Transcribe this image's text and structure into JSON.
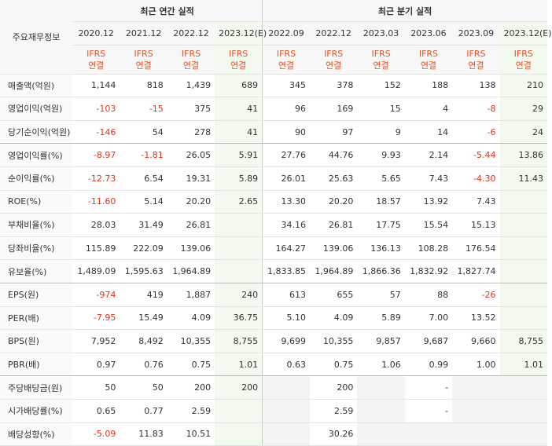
{
  "table": {
    "corner": "주요재무정보",
    "groups": [
      {
        "label": "최근 연간 실적",
        "span": 4
      },
      {
        "label": "최근 분기 실적",
        "span": 6
      }
    ],
    "columns": [
      {
        "date": "2020.12",
        "basis": [
          "IFRS",
          "연결"
        ]
      },
      {
        "date": "2021.12",
        "basis": [
          "IFRS",
          "연결"
        ]
      },
      {
        "date": "2022.12",
        "basis": [
          "IFRS",
          "연결"
        ]
      },
      {
        "date": "2023.12(E)",
        "basis": [
          "IFRS",
          "연결"
        ],
        "estimate": true
      },
      {
        "date": "2022.09",
        "basis": [
          "IFRS",
          "연결"
        ]
      },
      {
        "date": "2022.12",
        "basis": [
          "IFRS",
          "연결"
        ]
      },
      {
        "date": "2023.03",
        "basis": [
          "IFRS",
          "연결"
        ]
      },
      {
        "date": "2023.06",
        "basis": [
          "IFRS",
          "연결"
        ]
      },
      {
        "date": "2023.09",
        "basis": [
          "IFRS",
          "연결"
        ]
      },
      {
        "date": "2023.12(E)",
        "basis": [
          "IFRS",
          "연결"
        ],
        "estimate": true
      }
    ],
    "rows": [
      {
        "label": "매출액(억원)",
        "values": [
          "1,144",
          "818",
          "1,439",
          "689",
          "345",
          "378",
          "152",
          "188",
          "138",
          "210"
        ]
      },
      {
        "label": "영업이익(억원)",
        "values": [
          "-103",
          "-15",
          "375",
          "41",
          "96",
          "169",
          "15",
          "4",
          "-8",
          "29"
        ]
      },
      {
        "label": "당기순이익(억원)",
        "values": [
          "-146",
          "54",
          "278",
          "41",
          "90",
          "97",
          "9",
          "14",
          "-6",
          "24"
        ]
      },
      {
        "label": "영업이익률(%)",
        "values": [
          "-8.97",
          "-1.81",
          "26.05",
          "5.91",
          "27.76",
          "44.76",
          "9.93",
          "2.14",
          "-5.44",
          "13.86"
        ]
      },
      {
        "label": "순이익률(%)",
        "values": [
          "-12.73",
          "6.54",
          "19.31",
          "5.89",
          "26.01",
          "25.63",
          "5.65",
          "7.43",
          "-4.30",
          "11.43"
        ]
      },
      {
        "label": "ROE(%)",
        "values": [
          "-11.60",
          "5.14",
          "20.20",
          "2.65",
          "13.30",
          "20.20",
          "18.57",
          "13.92",
          "7.43",
          null
        ]
      },
      {
        "label": "부채비율(%)",
        "values": [
          "28.03",
          "31.49",
          "26.81",
          null,
          "34.16",
          "26.81",
          "17.75",
          "15.54",
          "15.13",
          null
        ]
      },
      {
        "label": "당좌비율(%)",
        "values": [
          "115.89",
          "222.09",
          "139.06",
          null,
          "164.27",
          "139.06",
          "136.13",
          "108.28",
          "176.54",
          null
        ]
      },
      {
        "label": "유보율(%)",
        "values": [
          "1,489.09",
          "1,595.63",
          "1,964.89",
          null,
          "1,833.85",
          "1,964.89",
          "1,866.36",
          "1,832.92",
          "1,827.74",
          null
        ]
      },
      {
        "label": "EPS(원)",
        "values": [
          "-974",
          "419",
          "1,887",
          "240",
          "613",
          "655",
          "57",
          "88",
          "-26",
          null
        ]
      },
      {
        "label": "PER(배)",
        "values": [
          "-7.95",
          "15.49",
          "4.09",
          "36.75",
          "5.10",
          "4.09",
          "5.89",
          "7.00",
          "13.52",
          null
        ]
      },
      {
        "label": "BPS(원)",
        "values": [
          "7,952",
          "8,492",
          "10,355",
          "8,755",
          "9,699",
          "10,355",
          "9,857",
          "9,687",
          "9,660",
          "8,755"
        ]
      },
      {
        "label": "PBR(배)",
        "values": [
          "0.97",
          "0.76",
          "0.75",
          "1.01",
          "0.63",
          "0.75",
          "1.06",
          "0.99",
          "1.00",
          "1.01"
        ]
      },
      {
        "label": "주당배당금(원)",
        "values": [
          "50",
          "50",
          "200",
          "200",
          null,
          "200",
          null,
          "-",
          null,
          null
        ]
      },
      {
        "label": "시가배당률(%)",
        "values": [
          "0.65",
          "0.77",
          "2.59",
          null,
          null,
          "2.59",
          null,
          "-",
          null,
          null
        ]
      },
      {
        "label": "배당성향(%)",
        "values": [
          "-5.09",
          "11.83",
          "10.51",
          null,
          null,
          "30.26",
          null,
          null,
          null,
          null
        ]
      }
    ]
  }
}
